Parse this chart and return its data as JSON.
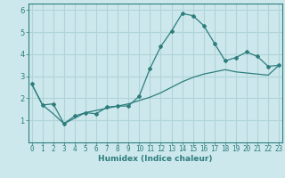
{
  "xlabel": "Humidex (Indice chaleur)",
  "background_color": "#cce8ec",
  "grid_color": "#b0d4d8",
  "line_color": "#2e7d7d",
  "x_ticks": [
    0,
    1,
    2,
    3,
    4,
    5,
    6,
    7,
    8,
    9,
    10,
    11,
    12,
    13,
    14,
    15,
    16,
    17,
    18,
    19,
    20,
    21,
    22,
    23
  ],
  "ylim": [
    0,
    6.3
  ],
  "xlim": [
    -0.3,
    23.3
  ],
  "series1_x": [
    0,
    1,
    2,
    3,
    4,
    5,
    6,
    7,
    8,
    9,
    10,
    11,
    12,
    13,
    14,
    15,
    16,
    17,
    18,
    19,
    20,
    21,
    22,
    23
  ],
  "series1_y": [
    2.65,
    1.7,
    1.75,
    0.85,
    1.2,
    1.35,
    1.3,
    1.6,
    1.65,
    1.65,
    2.1,
    3.35,
    4.35,
    5.05,
    5.85,
    5.75,
    5.3,
    4.5,
    3.7,
    3.85,
    4.1,
    3.9,
    3.45,
    3.5
  ],
  "series2_x": [
    0,
    1,
    2,
    3,
    4,
    5,
    6,
    7,
    8,
    9,
    10,
    11,
    12,
    13,
    14,
    15,
    16,
    17,
    18,
    19,
    20,
    21,
    22,
    23
  ],
  "series2_y": [
    2.65,
    1.7,
    1.3,
    0.85,
    1.1,
    1.35,
    1.45,
    1.55,
    1.65,
    1.75,
    1.9,
    2.05,
    2.25,
    2.5,
    2.75,
    2.95,
    3.1,
    3.2,
    3.3,
    3.2,
    3.15,
    3.1,
    3.05,
    3.5
  ],
  "yticks": [
    1,
    2,
    3,
    4,
    5,
    6
  ],
  "ylabel_fontsize": 6,
  "xlabel_fontsize": 6.5,
  "tick_fontsize": 5.5
}
